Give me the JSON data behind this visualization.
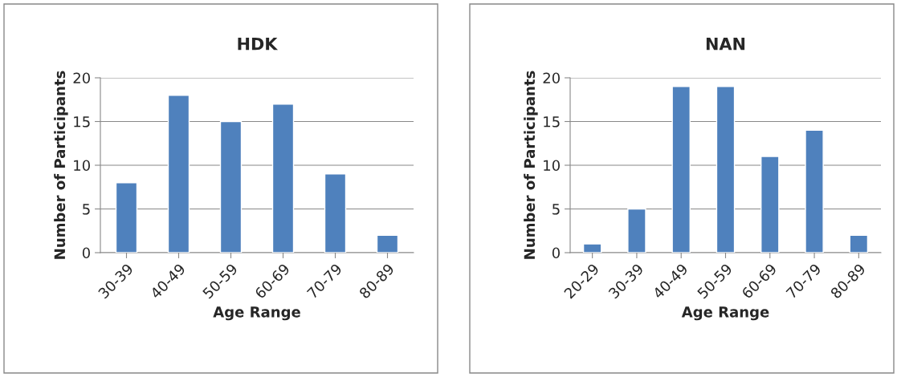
{
  "chart_data": [
    {
      "type": "bar",
      "title": "HDK",
      "xlabel": "Age Range",
      "ylabel": "Number of Participants",
      "categories": [
        "30-39",
        "40-49",
        "50-59",
        "60-69",
        "70-79",
        "80-89"
      ],
      "values": [
        8,
        18,
        15,
        17,
        9,
        2
      ],
      "color": "#4f81bd",
      "ylim": [
        0,
        20
      ],
      "yticks": [
        0,
        5,
        10,
        15,
        20
      ],
      "grid": "y"
    },
    {
      "type": "bar",
      "title": "NAN",
      "xlabel": "Age Range",
      "ylabel": "Number of Participants",
      "categories": [
        "20-29",
        "30-39",
        "40-49",
        "50-59",
        "60-69",
        "70-79",
        "80-89"
      ],
      "values": [
        1,
        5,
        19,
        19,
        11,
        14,
        2
      ],
      "color": "#4f81bd",
      "ylim": [
        0,
        20
      ],
      "yticks": [
        0,
        5,
        10,
        15,
        20
      ],
      "grid": "y"
    }
  ]
}
